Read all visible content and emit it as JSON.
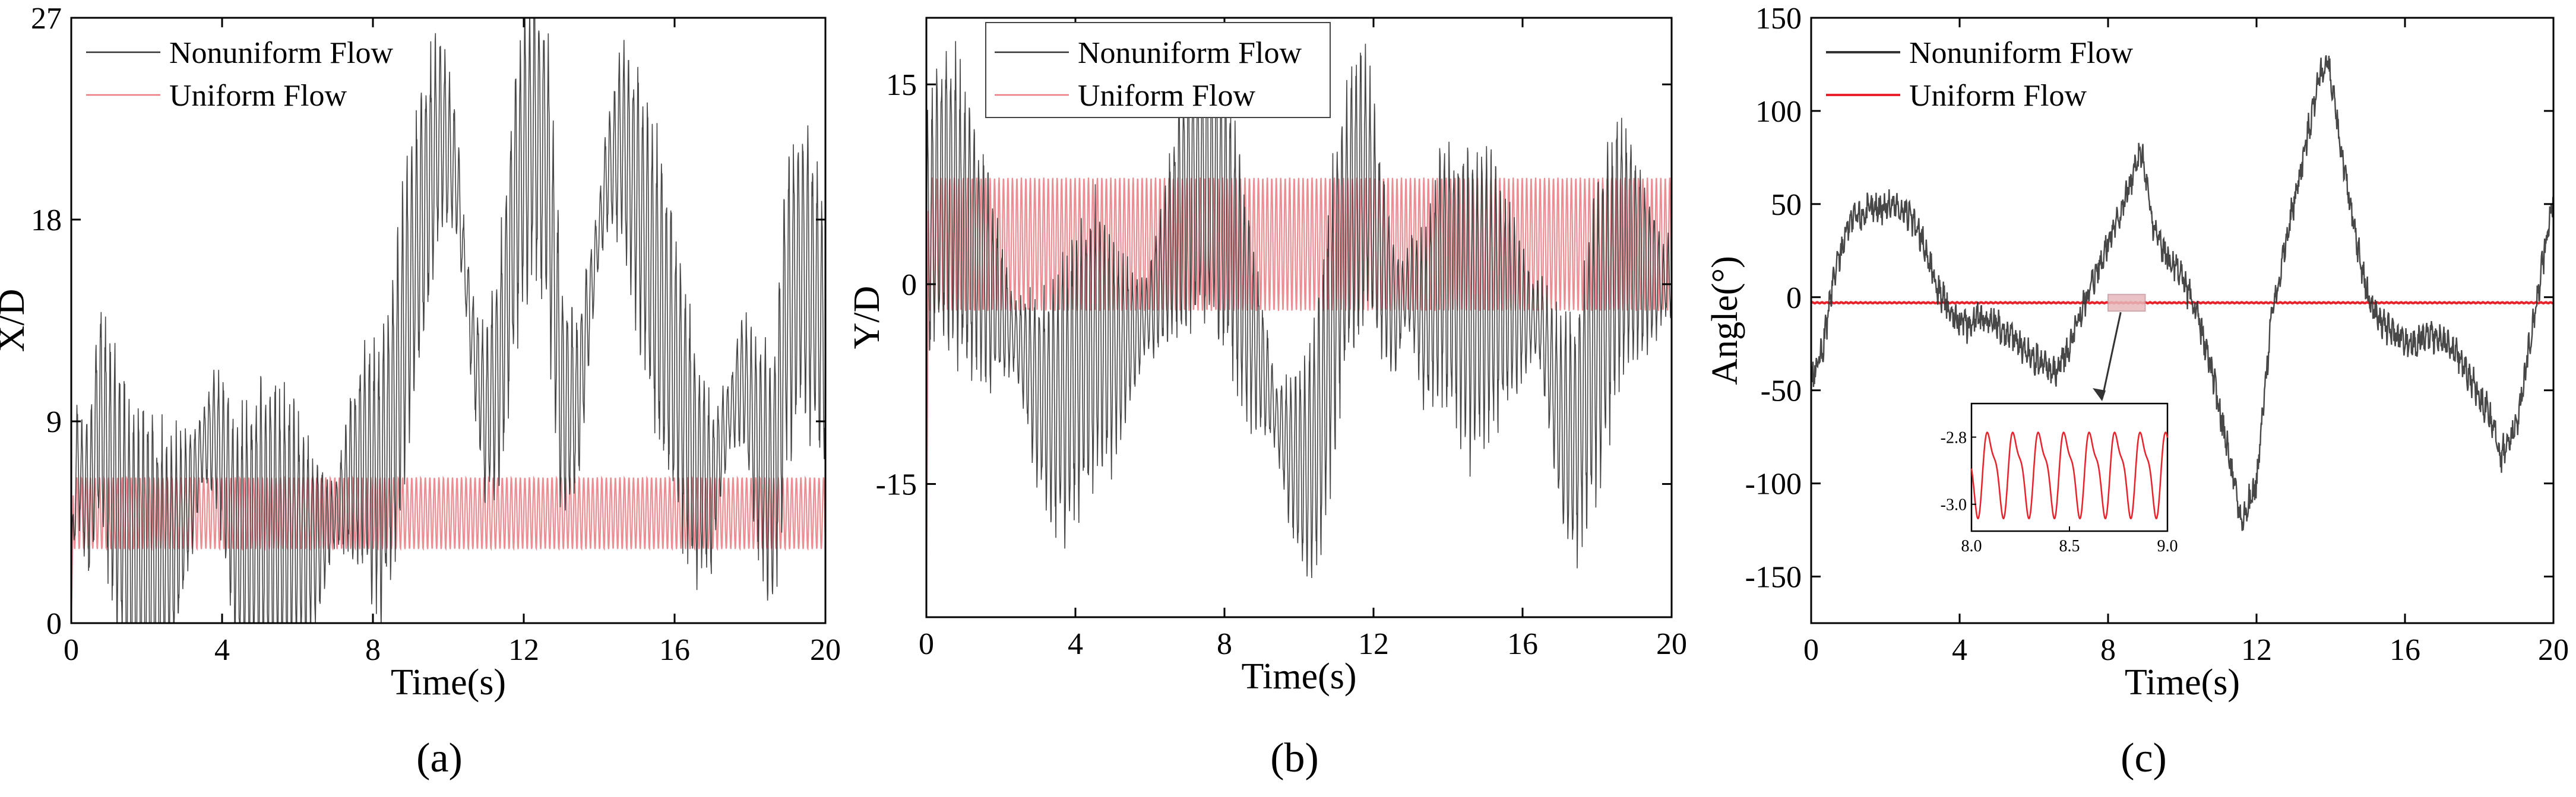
{
  "figure": {
    "captions": [
      "(a)",
      "(b)",
      "(c)"
    ]
  },
  "colors": {
    "nonuniform": "#333333",
    "uniform_ab": "#e87a80",
    "uniform_c": "#e8222a",
    "inset_box": "#e7b7ba",
    "axis": "#000000"
  },
  "chart_data": [
    {
      "type": "line",
      "panel": "a",
      "xlabel": "Time(s)",
      "ylabel": "X/D",
      "xlim": [
        0,
        20
      ],
      "ylim": [
        0,
        27
      ],
      "xticks": [
        0,
        4,
        8,
        12,
        16,
        20
      ],
      "yticks": [
        0,
        9,
        18,
        27
      ],
      "legend": {
        "placement": "top-left",
        "entries": [
          "Nonuniform Flow",
          "Uniform Flow"
        ]
      },
      "series": [
        {
          "name": "Nonuniform Flow",
          "style": "thin gray line with rapid oscillations",
          "x": [
            0,
            0.15,
            0.3,
            0.5,
            0.7,
            0.8,
            1.0,
            1.3,
            1.6,
            2.0,
            2.4,
            2.8,
            3.2,
            3.5,
            3.8,
            4.1,
            4.4,
            4.8,
            5.2,
            5.6,
            6.0,
            6.5,
            7.0,
            7.4,
            7.8,
            8.2,
            8.6,
            9.0,
            9.4,
            9.8,
            10.2,
            10.6,
            11.0,
            11.4,
            11.8,
            12.2,
            12.6,
            13.0,
            13.4,
            13.8,
            14.2,
            14.6,
            15.0,
            15.4,
            15.8,
            16.2,
            16.6,
            17.0,
            17.4,
            17.8,
            18.2,
            18.6,
            19.0,
            19.4,
            19.8,
            20.0
          ],
          "y": [
            2.0,
            7.5,
            6.0,
            5.5,
            9.0,
            9.5,
            7.0,
            5.0,
            3.5,
            3.0,
            2.8,
            4.0,
            6.0,
            8.0,
            8.5,
            6.5,
            3.5,
            4.0,
            4.5,
            4.2,
            4.0,
            3.8,
            4.8,
            6.5,
            7.5,
            6.0,
            10.0,
            15.0,
            19.0,
            22.0,
            20.0,
            13.0,
            9.0,
            12.0,
            19.0,
            22.0,
            21.0,
            10.0,
            9.5,
            15.0,
            20.0,
            21.5,
            19.0,
            16.0,
            13.0,
            10.0,
            7.0,
            6.0,
            9.0,
            11.0,
            8.0,
            6.0,
            14.0,
            16.0,
            14.0,
            12.0
          ]
        },
        {
          "name": "Uniform Flow",
          "style": "thin red line, steady fast oscillation",
          "oscillation": {
            "min": 3.3,
            "max": 6.5,
            "period_s": 0.12
          }
        }
      ]
    },
    {
      "type": "line",
      "panel": "b",
      "xlabel": "Time(s)",
      "ylabel": "Y/D",
      "xlim": [
        0,
        20
      ],
      "ylim": [
        -25,
        20
      ],
      "xticks": [
        0,
        4,
        8,
        12,
        16,
        20
      ],
      "yticks": [
        -15,
        0,
        15
      ],
      "legend": {
        "placement": "top-left",
        "entries": [
          "Nonuniform Flow",
          "Uniform Flow"
        ]
      },
      "series": [
        {
          "name": "Nonuniform Flow",
          "style": "thin gray line with rapid oscillations",
          "x": [
            0,
            0.3,
            0.6,
            1.0,
            1.4,
            1.8,
            2.2,
            2.6,
            3.0,
            3.4,
            3.8,
            4.2,
            4.6,
            5.0,
            5.5,
            6.0,
            6.5,
            7.0,
            7.4,
            7.8,
            8.2,
            8.6,
            9.0,
            9.4,
            9.8,
            10.2,
            10.6,
            11.0,
            11.4,
            11.8,
            12.2,
            12.6,
            13.0,
            13.4,
            13.8,
            14.2,
            14.6,
            15.0,
            15.5,
            16.0,
            16.5,
            17.0,
            17.4,
            17.8,
            18.2,
            18.6,
            19.0,
            19.4,
            19.8,
            20.0
          ],
          "y": [
            3,
            6,
            7,
            5,
            2,
            -1,
            -3,
            -5,
            -8,
            -9,
            -8,
            -5,
            -4,
            -5,
            -4,
            -2,
            2,
            7,
            8,
            7,
            3,
            -2,
            -6,
            -10,
            -13,
            -14,
            -10,
            0,
            6,
            8,
            2,
            -2,
            0,
            -3,
            1,
            0,
            -2,
            -1,
            -1,
            -2,
            -3,
            -10,
            -12,
            -6,
            -2,
            3,
            2,
            1,
            0,
            1
          ]
        },
        {
          "name": "Uniform Flow",
          "style": "thin red line, steady fast oscillation",
          "oscillation": {
            "min": -2,
            "max": 8,
            "period_s": 0.12
          }
        }
      ]
    },
    {
      "type": "line",
      "panel": "c",
      "xlabel": "Time(s)",
      "ylabel": "Angle(°)",
      "xlim": [
        0,
        20
      ],
      "ylim": [
        -175,
        150
      ],
      "xticks": [
        0,
        4,
        8,
        12,
        16,
        20
      ],
      "yticks": [
        -150,
        -100,
        -50,
        0,
        50,
        100,
        150
      ],
      "legend": {
        "placement": "top-left",
        "entries": [
          "Nonuniform Flow",
          "Uniform Flow"
        ]
      },
      "series": [
        {
          "name": "Nonuniform Flow",
          "style": "dark gray line with noise",
          "x": [
            0,
            0.3,
            0.6,
            1.0,
            1.4,
            1.8,
            2.2,
            2.6,
            3.0,
            3.4,
            3.8,
            4.2,
            4.6,
            5.0,
            5.4,
            5.8,
            6.2,
            6.6,
            7.0,
            7.4,
            7.8,
            8.2,
            8.6,
            8.9,
            9.2,
            9.6,
            10.0,
            10.4,
            10.8,
            11.2,
            11.6,
            12.0,
            12.4,
            12.8,
            13.2,
            13.6,
            13.9,
            14.2,
            14.6,
            15.0,
            15.4,
            15.8,
            16.2,
            16.6,
            17.0,
            17.4,
            17.8,
            18.2,
            18.6,
            19.0,
            19.4,
            19.8,
            20.0
          ],
          "y": [
            -45,
            -30,
            10,
            40,
            45,
            48,
            50,
            45,
            30,
            5,
            -10,
            -15,
            -10,
            -15,
            -20,
            -30,
            -35,
            -40,
            -25,
            0,
            20,
            40,
            60,
            78,
            40,
            20,
            10,
            -10,
            -40,
            -80,
            -120,
            -100,
            -10,
            30,
            70,
            110,
            128,
            90,
            40,
            0,
            -15,
            -20,
            -25,
            -20,
            -25,
            -30,
            -45,
            -60,
            -85,
            -70,
            -20,
            30,
            55
          ]
        },
        {
          "name": "Uniform Flow",
          "style": "red line, nearly flat",
          "constant": -3
        }
      ],
      "inset": {
        "xlim": [
          8.0,
          9.0
        ],
        "ylim": [
          -3.08,
          -2.7
        ],
        "xticks": [
          "8.0",
          "8.5",
          "9.0"
        ],
        "yticks": [
          "-2.8",
          "-3.0"
        ],
        "series": {
          "name": "Uniform Flow",
          "style": "red sinusoid with small double-peak shape",
          "period_s": 0.13,
          "min": -3.05,
          "max": -2.75
        }
      }
    }
  ]
}
